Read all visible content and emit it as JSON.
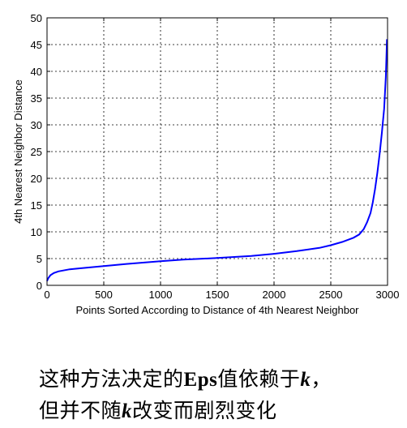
{
  "chart_data": {
    "type": "line",
    "xlabel": "Points Sorted According to Distance of 4th Nearest Neighbor",
    "ylabel": "4th Nearest Neighbor Distance",
    "xlim": [
      0,
      3000
    ],
    "ylim": [
      0,
      50
    ],
    "xticks": [
      0,
      500,
      1000,
      1500,
      2000,
      2500,
      3000
    ],
    "yticks": [
      0,
      5,
      10,
      15,
      20,
      25,
      30,
      35,
      40,
      45,
      50
    ],
    "grid": true,
    "line_color": "#0000ff",
    "series": [
      {
        "x": [
          0,
          10,
          30,
          60,
          100,
          200,
          300,
          500,
          700,
          1000,
          1200,
          1500,
          1800,
          2000,
          2200,
          2400,
          2500,
          2600,
          2700,
          2750,
          2790,
          2820,
          2850,
          2870,
          2890,
          2910,
          2930,
          2950,
          2970,
          2985,
          2995
        ],
        "y": [
          0.8,
          1.3,
          1.9,
          2.3,
          2.6,
          3.0,
          3.2,
          3.6,
          4.0,
          4.5,
          4.8,
          5.1,
          5.5,
          5.9,
          6.4,
          7.0,
          7.5,
          8.1,
          8.9,
          9.5,
          10.5,
          11.8,
          13.5,
          15.5,
          18.0,
          21.0,
          24.5,
          28.5,
          33.0,
          39.0,
          46.0
        ]
      }
    ]
  },
  "caption": {
    "line1_pre": "这种方法决定的",
    "line1_bold": "Eps",
    "line1_mid": "值依赖于",
    "line1_k": "k",
    "line1_post": "，",
    "line2_pre": "但并不随",
    "line2_k": "k",
    "line2_post": "改变而剧烈变化"
  }
}
